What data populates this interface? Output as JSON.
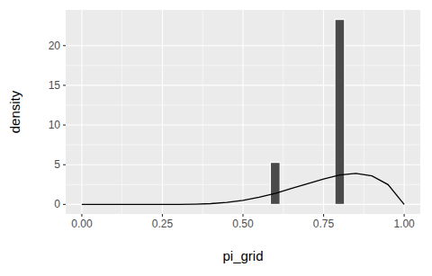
{
  "chart_data": {
    "type": "histogram",
    "x_label": "pi_grid",
    "y_label": "density",
    "bins": [
      0.585,
      0.615,
      0.785,
      0.815
    ],
    "values": [
      5.3,
      0,
      23.3
    ],
    "color": "#4a4a4a",
    "series": [
      {
        "type": "line",
        "color": "#000000",
        "x": [
          0,
          0.05,
          0.1,
          0.15,
          0.2,
          0.25,
          0.3,
          0.35,
          0.4,
          0.45,
          0.5,
          0.55,
          0.6,
          0.65,
          0.7,
          0.75,
          0.8,
          0.85,
          0.9,
          0.95,
          1
        ],
        "values": [
          0,
          0,
          0,
          0,
          0,
          0,
          0.01,
          0.04,
          0.1,
          0.25,
          0.5,
          0.9,
          1.4,
          2.0,
          2.6,
          3.2,
          3.7,
          3.9,
          3.6,
          2.5,
          0
        ]
      }
    ],
    "xlim": [
      -0.05,
      1.05
    ],
    "xticks": [
      {
        "value": 0,
        "label": "0.00"
      },
      {
        "value": 0.25,
        "label": "0.25"
      },
      {
        "value": 0.5,
        "label": "0.50"
      },
      {
        "value": 0.75,
        "label": "0.75"
      },
      {
        "value": 1,
        "label": "1.00"
      }
    ],
    "ylim": [
      -1.2,
      24.5
    ],
    "yticks": [
      0,
      5,
      10,
      15,
      20
    ],
    "grid": true
  }
}
